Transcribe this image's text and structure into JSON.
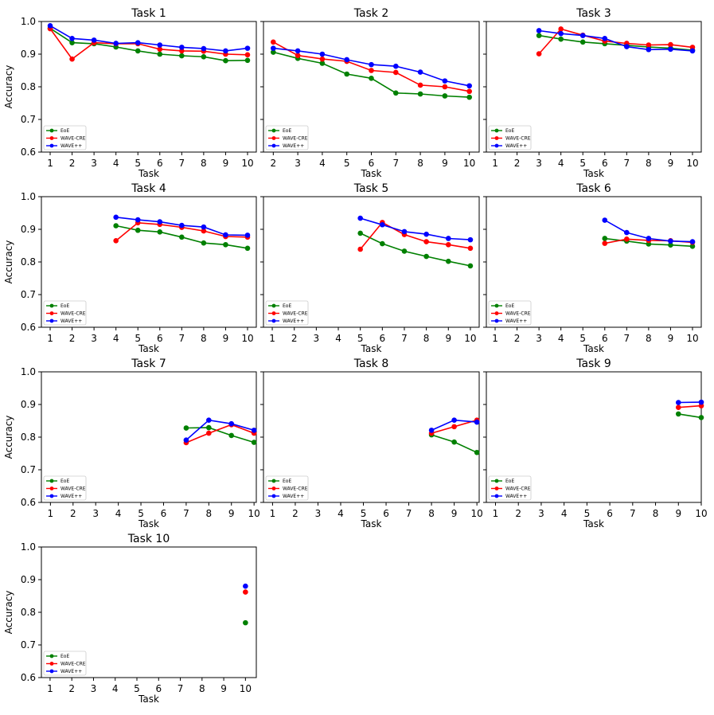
{
  "figure": {
    "background": "#ffffff",
    "series_colors": {
      "EoE": "#008000",
      "WAVE-CRE": "#ff0000",
      "WAVE++": "#0000ff"
    }
  },
  "chart_data": [
    {
      "type": "line",
      "title": "Task 1",
      "xlabel": "Task",
      "ylabel": "Accuracy",
      "xlim": [
        0.6,
        10.4
      ],
      "ylim": [
        0.6,
        1.0
      ],
      "xticks": [
        "1",
        "2",
        "3",
        "4",
        "5",
        "6",
        "7",
        "8",
        "9",
        "10"
      ],
      "yticks": [
        "0.6",
        "0.7",
        "0.8",
        "0.9",
        "1.0"
      ],
      "legend": "lower-left",
      "grid": false,
      "series": [
        {
          "name": "EoE",
          "color": "#008000",
          "x": [
            1,
            2,
            3,
            4,
            5,
            6,
            7,
            8,
            9,
            10
          ],
          "values": [
            0.979,
            0.935,
            0.932,
            0.922,
            0.91,
            0.9,
            0.895,
            0.892,
            0.88,
            0.881
          ]
        },
        {
          "name": "WAVE-CRE",
          "color": "#ff0000",
          "x": [
            1,
            2,
            3,
            4,
            5,
            6,
            7,
            8,
            9,
            10
          ],
          "values": [
            0.978,
            0.885,
            0.935,
            0.932,
            0.932,
            0.915,
            0.91,
            0.909,
            0.9,
            0.898
          ]
        },
        {
          "name": "WAVE++",
          "color": "#0000ff",
          "x": [
            1,
            2,
            3,
            4,
            5,
            6,
            7,
            8,
            9,
            10
          ],
          "values": [
            0.987,
            0.948,
            0.943,
            0.933,
            0.935,
            0.928,
            0.921,
            0.917,
            0.91,
            0.918
          ]
        }
      ]
    },
    {
      "type": "line",
      "title": "Task 2",
      "xlabel": "Task",
      "ylabel": "",
      "xlim": [
        1.6,
        10.4
      ],
      "ylim": [
        0.6,
        1.0
      ],
      "xticks": [
        "2",
        "3",
        "4",
        "5",
        "6",
        "7",
        "8",
        "9",
        "10"
      ],
      "yticks": [],
      "legend": "lower-left",
      "grid": false,
      "series": [
        {
          "name": "EoE",
          "color": "#008000",
          "x": [
            2,
            3,
            4,
            5,
            6,
            7,
            8,
            9,
            10
          ],
          "values": [
            0.906,
            0.887,
            0.872,
            0.839,
            0.826,
            0.781,
            0.778,
            0.772,
            0.768
          ]
        },
        {
          "name": "WAVE-CRE",
          "color": "#ff0000",
          "x": [
            2,
            3,
            4,
            5,
            6,
            7,
            8,
            9,
            10
          ],
          "values": [
            0.937,
            0.896,
            0.885,
            0.878,
            0.85,
            0.844,
            0.805,
            0.8,
            0.786
          ]
        },
        {
          "name": "WAVE++",
          "color": "#0000ff",
          "x": [
            2,
            3,
            4,
            5,
            6,
            7,
            8,
            9,
            10
          ],
          "values": [
            0.918,
            0.91,
            0.9,
            0.883,
            0.868,
            0.863,
            0.845,
            0.818,
            0.803
          ]
        }
      ]
    },
    {
      "type": "line",
      "title": "Task 3",
      "xlabel": "Task",
      "ylabel": "",
      "xlim": [
        0.6,
        10.4
      ],
      "ylim": [
        0.6,
        1.0
      ],
      "xticks": [
        "1",
        "2",
        "3",
        "4",
        "5",
        "6",
        "7",
        "8",
        "9",
        "10"
      ],
      "yticks": [],
      "legend": "lower-left",
      "grid": false,
      "series": [
        {
          "name": "EoE",
          "color": "#008000",
          "x": [
            3,
            4,
            5,
            6,
            7,
            8,
            9,
            10
          ],
          "values": [
            0.957,
            0.946,
            0.937,
            0.932,
            0.927,
            0.922,
            0.918,
            0.912
          ]
        },
        {
          "name": "WAVE-CRE",
          "color": "#ff0000",
          "x": [
            3,
            4,
            5,
            6,
            7,
            8,
            9,
            10
          ],
          "values": [
            0.901,
            0.977,
            0.958,
            0.94,
            0.933,
            0.928,
            0.929,
            0.921
          ]
        },
        {
          "name": "WAVE++",
          "color": "#0000ff",
          "x": [
            3,
            4,
            5,
            6,
            7,
            8,
            9,
            10
          ],
          "values": [
            0.972,
            0.963,
            0.957,
            0.948,
            0.923,
            0.914,
            0.915,
            0.91
          ]
        }
      ]
    },
    {
      "type": "line",
      "title": "Task 4",
      "xlabel": "Task",
      "ylabel": "Accuracy",
      "xlim": [
        0.6,
        10.4
      ],
      "ylim": [
        0.6,
        1.0
      ],
      "xticks": [
        "1",
        "2",
        "3",
        "4",
        "5",
        "6",
        "7",
        "8",
        "9",
        "10"
      ],
      "yticks": [
        "0.6",
        "0.7",
        "0.8",
        "0.9",
        "1.0"
      ],
      "legend": "lower-left",
      "grid": false,
      "series": [
        {
          "name": "EoE",
          "color": "#008000",
          "x": [
            4,
            5,
            6,
            7,
            8,
            9,
            10
          ],
          "values": [
            0.911,
            0.897,
            0.892,
            0.876,
            0.858,
            0.853,
            0.842
          ]
        },
        {
          "name": "WAVE-CRE",
          "color": "#ff0000",
          "x": [
            4,
            5,
            6,
            7,
            8,
            9,
            10
          ],
          "values": [
            0.865,
            0.92,
            0.915,
            0.906,
            0.895,
            0.878,
            0.876
          ]
        },
        {
          "name": "WAVE++",
          "color": "#0000ff",
          "x": [
            4,
            5,
            6,
            7,
            8,
            9,
            10
          ],
          "values": [
            0.937,
            0.929,
            0.923,
            0.912,
            0.907,
            0.883,
            0.882
          ]
        }
      ]
    },
    {
      "type": "line",
      "title": "Task 5",
      "xlabel": "Task",
      "ylabel": "",
      "xlim": [
        0.6,
        10.4
      ],
      "ylim": [
        0.6,
        1.0
      ],
      "xticks": [
        "1",
        "2",
        "3",
        "4",
        "5",
        "6",
        "7",
        "8",
        "9",
        "10"
      ],
      "yticks": [],
      "legend": "lower-left",
      "grid": false,
      "series": [
        {
          "name": "EoE",
          "color": "#008000",
          "x": [
            5,
            6,
            7,
            8,
            9,
            10
          ],
          "values": [
            0.888,
            0.856,
            0.833,
            0.817,
            0.802,
            0.788
          ]
        },
        {
          "name": "WAVE-CRE",
          "color": "#ff0000",
          "x": [
            5,
            6,
            7,
            8,
            9,
            10
          ],
          "values": [
            0.839,
            0.921,
            0.884,
            0.862,
            0.853,
            0.842
          ]
        },
        {
          "name": "WAVE++",
          "color": "#0000ff",
          "x": [
            5,
            6,
            7,
            8,
            9,
            10
          ],
          "values": [
            0.934,
            0.914,
            0.893,
            0.885,
            0.872,
            0.868
          ]
        }
      ]
    },
    {
      "type": "line",
      "title": "Task 6",
      "xlabel": "Task",
      "ylabel": "",
      "xlim": [
        0.6,
        10.4
      ],
      "ylim": [
        0.6,
        1.0
      ],
      "xticks": [
        "1",
        "2",
        "3",
        "4",
        "5",
        "6",
        "7",
        "8",
        "9",
        "10"
      ],
      "yticks": [],
      "legend": "lower-left",
      "grid": false,
      "series": [
        {
          "name": "EoE",
          "color": "#008000",
          "x": [
            6,
            7,
            8,
            9,
            10
          ],
          "values": [
            0.872,
            0.864,
            0.855,
            0.852,
            0.848
          ]
        },
        {
          "name": "WAVE-CRE",
          "color": "#ff0000",
          "x": [
            6,
            7,
            8,
            9,
            10
          ],
          "values": [
            0.857,
            0.87,
            0.866,
            0.865,
            0.86
          ]
        },
        {
          "name": "WAVE++",
          "color": "#0000ff",
          "x": [
            6,
            7,
            8,
            9,
            10
          ],
          "values": [
            0.928,
            0.89,
            0.872,
            0.864,
            0.862
          ]
        }
      ]
    },
    {
      "type": "line",
      "title": "Task 7",
      "xlabel": "Task",
      "ylabel": "Accuracy",
      "xlim": [
        0.6,
        10.1
      ],
      "ylim": [
        0.6,
        1.0
      ],
      "xticks": [
        "1",
        "2",
        "3",
        "4",
        "5",
        "6",
        "7",
        "8",
        "9",
        "10"
      ],
      "yticks": [
        "0.6",
        "0.7",
        "0.8",
        "0.9",
        "1.0"
      ],
      "legend": "lower-left",
      "grid": false,
      "series": [
        {
          "name": "EoE",
          "color": "#008000",
          "x": [
            7,
            8,
            9,
            10
          ],
          "values": [
            0.828,
            0.829,
            0.805,
            0.784
          ]
        },
        {
          "name": "WAVE-CRE",
          "color": "#ff0000",
          "x": [
            7,
            8,
            9,
            10
          ],
          "values": [
            0.783,
            0.812,
            0.838,
            0.812
          ]
        },
        {
          "name": "WAVE++",
          "color": "#0000ff",
          "x": [
            7,
            8,
            9,
            10
          ],
          "values": [
            0.791,
            0.852,
            0.841,
            0.821
          ]
        }
      ]
    },
    {
      "type": "line",
      "title": "Task 8",
      "xlabel": "Task",
      "ylabel": "",
      "xlim": [
        0.6,
        10.1
      ],
      "ylim": [
        0.6,
        1.0
      ],
      "xticks": [
        "1",
        "2",
        "3",
        "4",
        "5",
        "6",
        "7",
        "8",
        "9",
        "10"
      ],
      "yticks": [],
      "legend": "lower-left",
      "grid": false,
      "series": [
        {
          "name": "EoE",
          "color": "#008000",
          "x": [
            8,
            9,
            10
          ],
          "values": [
            0.807,
            0.785,
            0.753
          ]
        },
        {
          "name": "WAVE-CRE",
          "color": "#ff0000",
          "x": [
            8,
            9,
            10
          ],
          "values": [
            0.812,
            0.832,
            0.852
          ]
        },
        {
          "name": "WAVE++",
          "color": "#0000ff",
          "x": [
            8,
            9,
            10
          ],
          "values": [
            0.821,
            0.852,
            0.846
          ]
        }
      ]
    },
    {
      "type": "line",
      "title": "Task 9",
      "xlabel": "Task",
      "ylabel": "",
      "xlim": [
        0.6,
        10.0
      ],
      "ylim": [
        0.6,
        1.0
      ],
      "xticks": [
        "1",
        "2",
        "3",
        "4",
        "5",
        "6",
        "7",
        "8",
        "9",
        "10"
      ],
      "yticks": [],
      "legend": "lower-left",
      "grid": false,
      "series": [
        {
          "name": "EoE",
          "color": "#008000",
          "x": [
            9,
            10
          ],
          "values": [
            0.871,
            0.86
          ]
        },
        {
          "name": "WAVE-CRE",
          "color": "#ff0000",
          "x": [
            9,
            10
          ],
          "values": [
            0.891,
            0.896
          ]
        },
        {
          "name": "WAVE++",
          "color": "#0000ff",
          "x": [
            9,
            10
          ],
          "values": [
            0.906,
            0.907
          ]
        }
      ]
    },
    {
      "type": "scatter",
      "title": "Task 10",
      "xlabel": "Task",
      "ylabel": "Accuracy",
      "xlim": [
        0.6,
        10.5
      ],
      "ylim": [
        0.6,
        1.0
      ],
      "xticks": [
        "1",
        "2",
        "3",
        "4",
        "5",
        "6",
        "7",
        "8",
        "9",
        "10"
      ],
      "yticks": [
        "0.6",
        "0.7",
        "0.8",
        "0.9",
        "1.0"
      ],
      "legend": "lower-left",
      "grid": false,
      "series": [
        {
          "name": "EoE",
          "color": "#008000",
          "x": [
            10
          ],
          "values": [
            0.768
          ]
        },
        {
          "name": "WAVE-CRE",
          "color": "#ff0000",
          "x": [
            10
          ],
          "values": [
            0.862
          ]
        },
        {
          "name": "WAVE++",
          "color": "#0000ff",
          "x": [
            10
          ],
          "values": [
            0.88
          ]
        }
      ]
    }
  ]
}
